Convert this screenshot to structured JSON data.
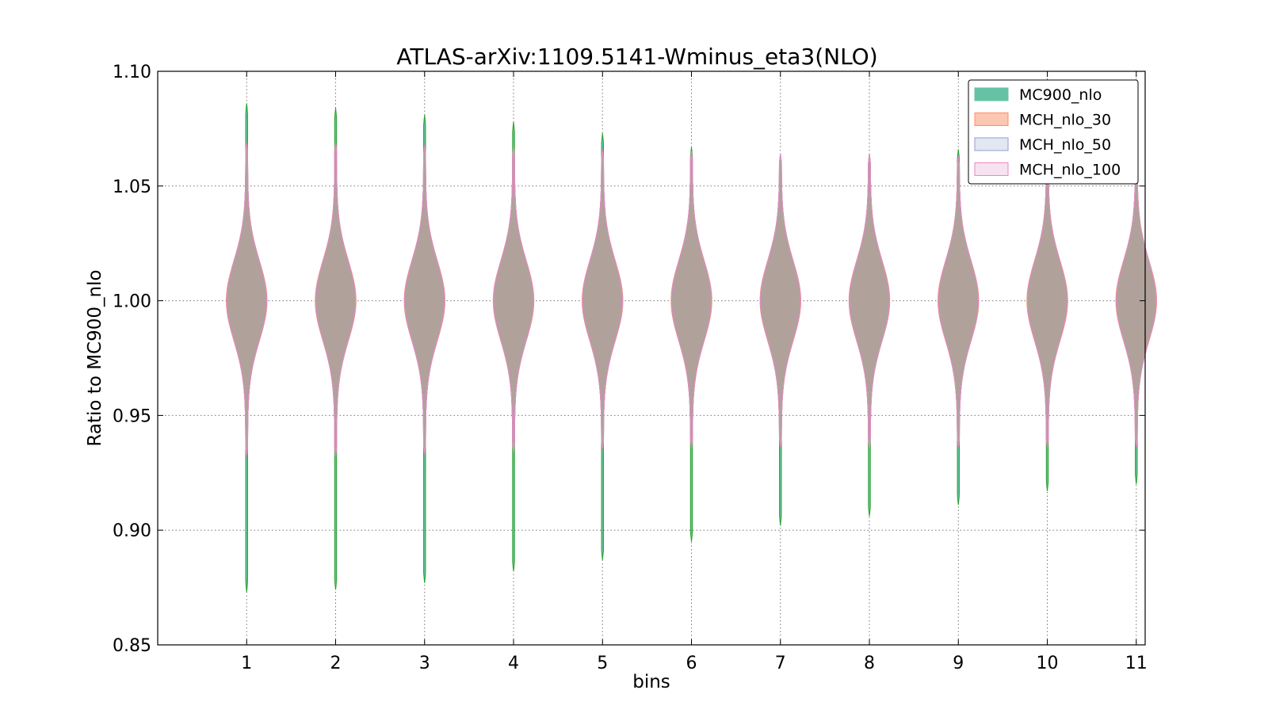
{
  "chart_data": {
    "type": "violin",
    "title": "ATLAS-arXiv:1109.5141-Wminus_eta3(NLO)",
    "xlabel": "bins",
    "ylabel": "Ratio to MC900_nlo",
    "ylim": [
      0.85,
      1.1
    ],
    "xlim": [
      0,
      11.1
    ],
    "grid": true,
    "legend_position": "top-right",
    "x_ticks": [
      "1",
      "2",
      "3",
      "4",
      "5",
      "6",
      "7",
      "8",
      "9",
      "10",
      "11"
    ],
    "y_ticks": [
      "0.85",
      "0.90",
      "0.95",
      "1.00",
      "1.05",
      "1.10"
    ],
    "series": [
      {
        "name": "MC900_nlo",
        "fill": "#66c2a5",
        "edge": "#2ca02c",
        "alpha": 1.0
      },
      {
        "name": "MCH_nlo_30",
        "fill": "#fc8d62",
        "edge": "#fc8d62",
        "alpha": 0.5
      },
      {
        "name": "MCH_nlo_50",
        "fill": "#8da0cb",
        "edge": "#8da0cb",
        "alpha": 0.25
      },
      {
        "name": "MCH_nlo_100",
        "fill": "#e78ac3",
        "edge": "#e78ac3",
        "alpha": 0.15
      }
    ],
    "bins": [
      {
        "x": 1,
        "mc900": {
          "min": 0.873,
          "max": 1.086
        },
        "mch": {
          "min": 0.932,
          "max": 1.069
        },
        "median": 1.0
      },
      {
        "x": 2,
        "mc900": {
          "min": 0.874,
          "max": 1.084
        },
        "mch": {
          "min": 0.932,
          "max": 1.069
        },
        "median": 1.0
      },
      {
        "x": 3,
        "mc900": {
          "min": 0.877,
          "max": 1.081
        },
        "mch": {
          "min": 0.933,
          "max": 1.068
        },
        "median": 1.0
      },
      {
        "x": 4,
        "mc900": {
          "min": 0.882,
          "max": 1.078
        },
        "mch": {
          "min": 0.934,
          "max": 1.067
        },
        "median": 1.0
      },
      {
        "x": 5,
        "mc900": {
          "min": 0.887,
          "max": 1.073
        },
        "mch": {
          "min": 0.935,
          "max": 1.066
        },
        "median": 1.0
      },
      {
        "x": 6,
        "mc900": {
          "min": 0.895,
          "max": 1.067
        },
        "mch": {
          "min": 0.936,
          "max": 1.065
        },
        "median": 1.0
      },
      {
        "x": 7,
        "mc900": {
          "min": 0.902,
          "max": 1.064
        },
        "mch": {
          "min": 0.936,
          "max": 1.064
        },
        "median": 1.0
      },
      {
        "x": 8,
        "mc900": {
          "min": 0.906,
          "max": 1.064
        },
        "mch": {
          "min": 0.936,
          "max": 1.064
        },
        "median": 1.0
      },
      {
        "x": 9,
        "mc900": {
          "min": 0.911,
          "max": 1.066
        },
        "mch": {
          "min": 0.936,
          "max": 1.063
        },
        "median": 1.0
      },
      {
        "x": 10,
        "mc900": {
          "min": 0.917,
          "max": 1.064
        },
        "mch": {
          "min": 0.936,
          "max": 1.063
        },
        "median": 1.0
      },
      {
        "x": 11,
        "mc900": {
          "min": 0.92,
          "max": 1.062
        },
        "mch": {
          "min": 0.936,
          "max": 1.062
        },
        "median": 1.0
      }
    ]
  }
}
